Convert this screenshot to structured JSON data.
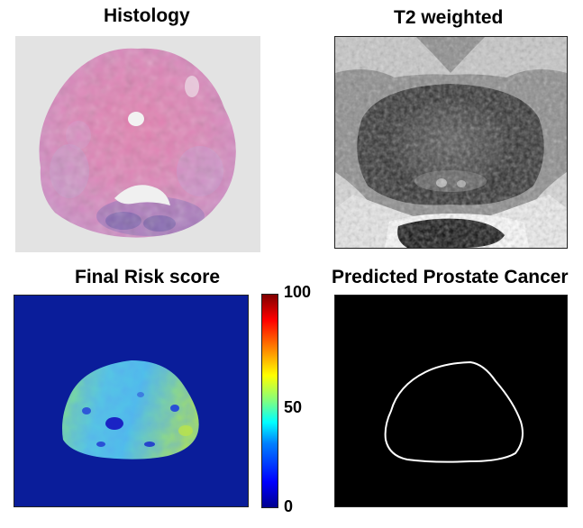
{
  "panels": {
    "histology": {
      "title": "Histology"
    },
    "t2": {
      "title": "T2 weighted"
    },
    "risk": {
      "title": "Final Risk score"
    },
    "predicted": {
      "title": "Predicted Prostate Cancer"
    }
  },
  "colorbar": {
    "ticks": [
      "100",
      "50",
      "0"
    ],
    "range": [
      0,
      100
    ],
    "colormap": "jet"
  },
  "colors": {
    "histology_background": "#e3e3e3",
    "risk_background": "#0a1d9a",
    "predicted_background": "#000000",
    "contour": "#ffffff"
  }
}
